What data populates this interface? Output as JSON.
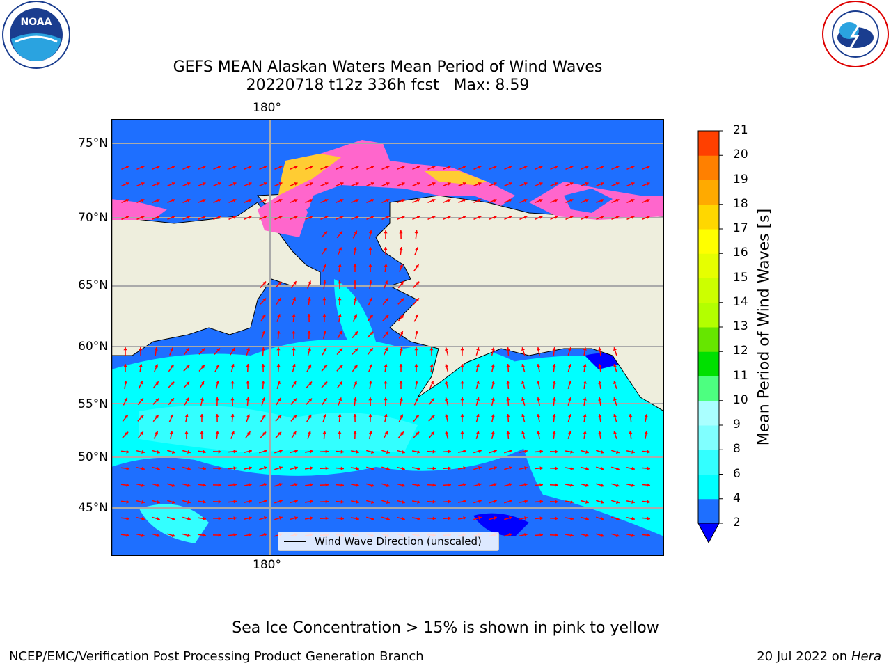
{
  "title_line1": "GEFS MEAN Alaskan Waters Mean Period of Wind Waves",
  "title_line2": "20220718 t12z 336h fcst   Max: 8.59",
  "logos": {
    "left": "NOAA",
    "right": "NATIONAL WEATHER SERVICE"
  },
  "lon_label_top": "180°",
  "lon_label_bottom": "180°",
  "lat_labels": [
    "75°N",
    "70°N",
    "65°N",
    "60°N",
    "55°N",
    "50°N",
    "45°N"
  ],
  "colorbar": {
    "label": "Mean Period of Wind Waves [s]",
    "ticks": [
      "2",
      "4",
      "6",
      "8",
      "9",
      "10",
      "11",
      "12",
      "13",
      "14",
      "15",
      "16",
      "17",
      "18",
      "19",
      "20",
      "21"
    ],
    "colors": [
      "#1e6fff",
      "#00ffff",
      "#33ffff",
      "#80ffff",
      "#aaffff",
      "#4dff80",
      "#00e000",
      "#66e600",
      "#b3ff00",
      "#ccff00",
      "#e6ff00",
      "#ffff00",
      "#ffd700",
      "#ffaa00",
      "#ff8000",
      "#ff4000",
      "#ff0000"
    ],
    "under_color": "#0000ff"
  },
  "legend_label": "Wind Wave Direction (unscaled)",
  "bottom_note": "Sea Ice Concentration > 15% is shown in pink to yellow",
  "footer_left": "NCEP/EMC/Verification Post Processing Product Generation Branch",
  "footer_right_date": "20 Jul 2022 on",
  "footer_right_machine": "Hera",
  "map_colors": {
    "land": "#eeeedd",
    "ocean_low": "#1e6fff",
    "ocean_mid": "#00ffff",
    "ice_pink": "#ff66cc",
    "ice_yellow": "#ffcc33",
    "arrow": "#ff0000",
    "grid": "#aaaaaa"
  }
}
